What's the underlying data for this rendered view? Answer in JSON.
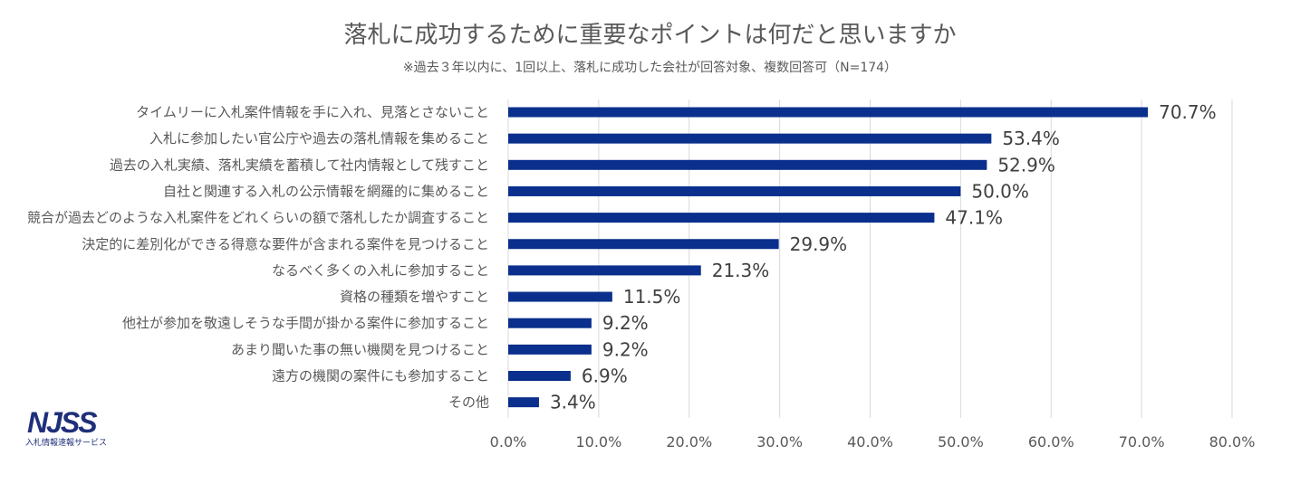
{
  "title": "落札に成功するために重要なポイントは何だと思いますか",
  "subtitle": "※過去３年以内に、1回以上、落札に成功した会社が回答対象、複数回答可（N=174）",
  "logo": {
    "text": "NJSS",
    "subtext": "入札情報速報サービス"
  },
  "chart_data": {
    "type": "bar",
    "orientation": "horizontal",
    "bar_color": "#0a2f8c",
    "grid": true,
    "xlim": [
      0,
      80
    ],
    "x_ticks": [
      "0.0%",
      "10.0%",
      "20.0%",
      "30.0%",
      "40.0%",
      "50.0%",
      "60.0%",
      "70.0%",
      "80.0%"
    ],
    "categories": [
      "タイムリーに入札案件情報を手に入れ、見落とさないこと",
      "入札に参加したい官公庁や過去の落札情報を集めること",
      "過去の入札実績、落札実績を蓄積して社内情報として残すこと",
      "自社と関連する入札の公示情報を網羅的に集めること",
      "競合が過去どのような入札案件をどれくらいの額で落札したか調査すること",
      "決定的に差別化ができる得意な要件が含まれる案件を見つけること",
      "なるべく多くの入札に参加すること",
      "資格の種類を増やすこと",
      "他社が参加を敬遠しそうな手間が掛かる案件に参加すること",
      "あまり聞いた事の無い機関を見つけること",
      "遠方の機関の案件にも参加すること",
      "その他"
    ],
    "values": [
      70.7,
      53.4,
      52.9,
      50.0,
      47.1,
      29.9,
      21.3,
      11.5,
      9.2,
      9.2,
      6.9,
      3.4
    ],
    "value_labels": [
      "70.7%",
      "53.4%",
      "52.9%",
      "50.0%",
      "47.1%",
      "29.9%",
      "21.3%",
      "11.5%",
      "9.2%",
      "9.2%",
      "6.9%",
      "3.4%"
    ]
  }
}
